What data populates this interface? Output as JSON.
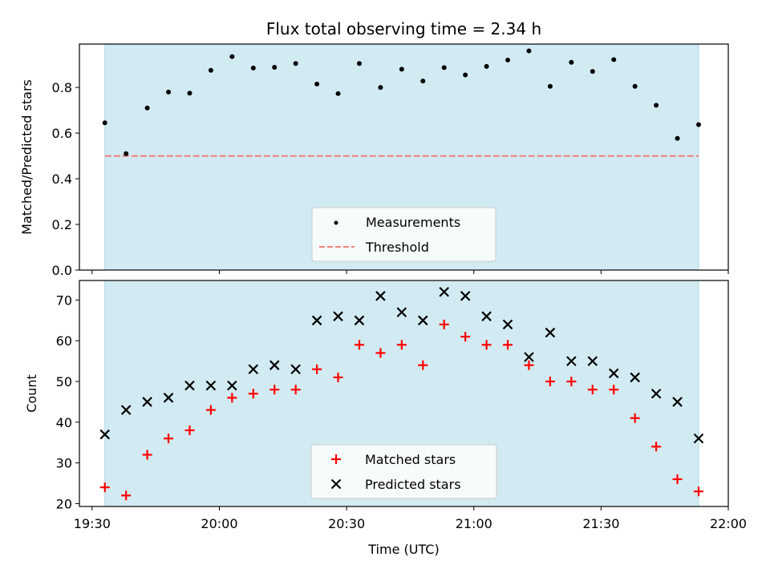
{
  "chart_data": [
    {
      "type": "scatter",
      "title": "Flux total observing time = 2.34 h",
      "xlabel": "",
      "ylabel": "Matched/Predicted stars",
      "ylim": [
        0.0,
        0.99
      ],
      "xlim": [
        "19:27",
        "22:00"
      ],
      "yticks": [
        "0.0",
        "0.2",
        "0.4",
        "0.6",
        "0.8"
      ],
      "shaded_span": [
        "19:33",
        "21:53"
      ],
      "shade_color": "#add8e6",
      "legend_position": "lower center",
      "series": [
        {
          "name": "Measurements",
          "marker": "dot",
          "color": "#000000",
          "x": [
            "19:33",
            "19:38",
            "19:43",
            "19:48",
            "19:53",
            "19:58",
            "20:03",
            "20:08",
            "20:13",
            "20:18",
            "20:23",
            "20:28",
            "20:33",
            "20:38",
            "20:43",
            "20:48",
            "20:53",
            "20:58",
            "21:03",
            "21:08",
            "21:13",
            "21:18",
            "21:23",
            "21:28",
            "21:33",
            "21:38",
            "21:43",
            "21:48",
            "21:53"
          ],
          "values": [
            0.645,
            0.51,
            0.71,
            0.78,
            0.775,
            0.875,
            0.935,
            0.885,
            0.888,
            0.905,
            0.815,
            0.773,
            0.905,
            0.8,
            0.88,
            0.828,
            0.887,
            0.855,
            0.892,
            0.92,
            0.96,
            0.805,
            0.91,
            0.87,
            0.922,
            0.805,
            0.722,
            0.577,
            0.637
          ]
        },
        {
          "name": "Threshold",
          "style": "dashed",
          "color": "#f08080",
          "value": 0.5
        }
      ]
    },
    {
      "type": "scatter",
      "title": "",
      "xlabel": "Time (UTC)",
      "ylabel": "Count",
      "ylim": [
        19.3,
        74.8
      ],
      "xlim": [
        "19:27",
        "22:00"
      ],
      "yticks": [
        "20",
        "30",
        "40",
        "50",
        "60",
        "70"
      ],
      "xticks": [
        "19:30",
        "20:00",
        "20:30",
        "21:00",
        "21:30",
        "22:00"
      ],
      "shaded_span": [
        "19:33",
        "21:53"
      ],
      "shade_color": "#add8e6",
      "legend_position": "lower center",
      "series": [
        {
          "name": "Matched stars",
          "marker": "plus",
          "color": "#ff0000",
          "x": [
            "19:33",
            "19:38",
            "19:43",
            "19:48",
            "19:53",
            "19:58",
            "20:03",
            "20:08",
            "20:13",
            "20:18",
            "20:23",
            "20:28",
            "20:33",
            "20:38",
            "20:43",
            "20:48",
            "20:53",
            "20:58",
            "21:03",
            "21:08",
            "21:13",
            "21:18",
            "21:23",
            "21:28",
            "21:33",
            "21:38",
            "21:43",
            "21:48",
            "21:53"
          ],
          "values": [
            24,
            22,
            32,
            36,
            38,
            43,
            46,
            47,
            48,
            48,
            53,
            51,
            59,
            57,
            59,
            54,
            64,
            61,
            59,
            59,
            54,
            50,
            50,
            48,
            48,
            41,
            34,
            26,
            23
          ]
        },
        {
          "name": "Predicted stars",
          "marker": "x",
          "color": "#000000",
          "x": [
            "19:33",
            "19:38",
            "19:43",
            "19:48",
            "19:53",
            "19:58",
            "20:03",
            "20:08",
            "20:13",
            "20:18",
            "20:23",
            "20:28",
            "20:33",
            "20:38",
            "20:43",
            "20:48",
            "20:53",
            "20:58",
            "21:03",
            "21:08",
            "21:13",
            "21:18",
            "21:23",
            "21:28",
            "21:33",
            "21:38",
            "21:43",
            "21:48",
            "21:53"
          ],
          "values": [
            37,
            43,
            45,
            46,
            49,
            49,
            49,
            53,
            54,
            53,
            65,
            66,
            65,
            71,
            67,
            65,
            72,
            71,
            66,
            64,
            56,
            62,
            55,
            55,
            52,
            51,
            47,
            45,
            36
          ]
        }
      ]
    }
  ]
}
